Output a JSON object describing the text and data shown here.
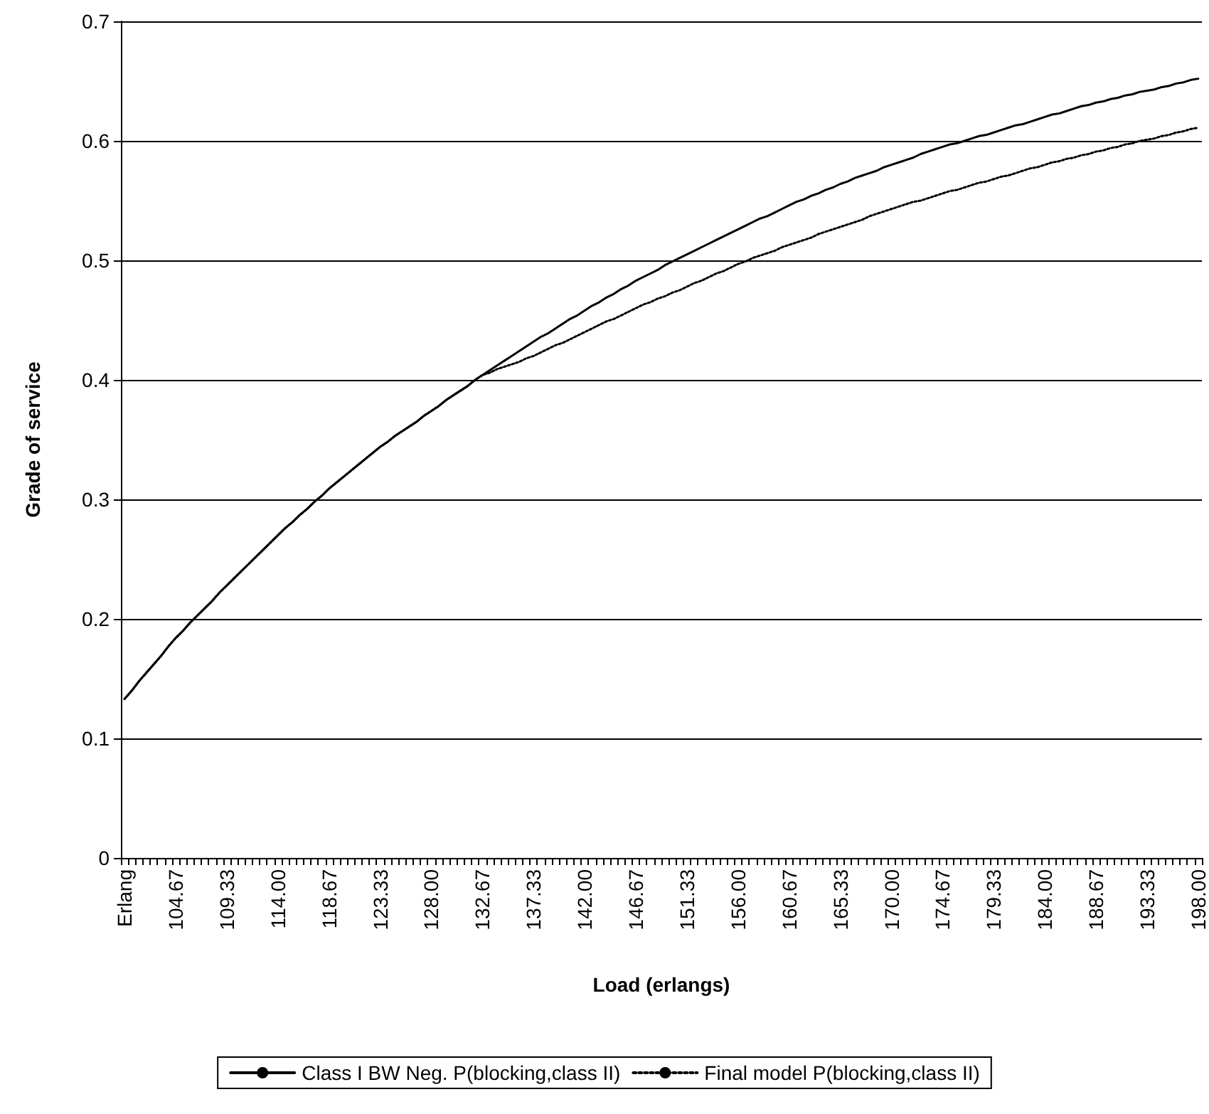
{
  "chart_data": {
    "type": "line",
    "xlabel": "Load (erlangs)",
    "ylabel": "Grade of service",
    "categories": [
      "Erlang",
      null,
      null,
      null,
      null,
      null,
      null,
      "104.67",
      null,
      null,
      null,
      null,
      null,
      null,
      "109.33",
      null,
      null,
      null,
      null,
      null,
      null,
      "114.00",
      null,
      null,
      null,
      null,
      null,
      null,
      "118.67",
      null,
      null,
      null,
      null,
      null,
      null,
      "123.33",
      null,
      null,
      null,
      null,
      null,
      null,
      "128.00",
      null,
      null,
      null,
      null,
      null,
      null,
      "132.67",
      null,
      null,
      null,
      null,
      null,
      null,
      "137.33",
      null,
      null,
      null,
      null,
      null,
      null,
      "142.00",
      null,
      null,
      null,
      null,
      null,
      null,
      "146.67",
      null,
      null,
      null,
      null,
      null,
      null,
      "151.33",
      null,
      null,
      null,
      null,
      null,
      null,
      "156.00",
      null,
      null,
      null,
      null,
      null,
      null,
      "160.67",
      null,
      null,
      null,
      null,
      null,
      null,
      "165.33",
      null,
      null,
      null,
      null,
      null,
      null,
      "170.00",
      null,
      null,
      null,
      null,
      null,
      null,
      "174.67",
      null,
      null,
      null,
      null,
      null,
      null,
      "179.33",
      null,
      null,
      null,
      null,
      null,
      null,
      "184.00",
      null,
      null,
      null,
      null,
      null,
      null,
      "188.67",
      null,
      null,
      null,
      null,
      null,
      null,
      "193.33",
      null,
      null,
      null,
      null,
      null,
      null,
      "198.00"
    ],
    "series": [
      {
        "name": "Class I BW Neg. P(blocking,class II)",
        "color": "#000000",
        "line_style": "solid",
        "values": [
          0.133,
          0.14,
          0.148,
          0.155,
          0.162,
          0.169,
          0.177,
          0.184,
          0.19,
          0.197,
          0.203,
          0.209,
          0.215,
          0.222,
          0.228,
          0.234,
          0.24,
          0.246,
          0.252,
          0.258,
          0.264,
          0.27,
          0.276,
          0.281,
          0.287,
          0.292,
          0.298,
          0.303,
          0.309,
          0.314,
          0.319,
          0.324,
          0.329,
          0.334,
          0.339,
          0.344,
          0.348,
          0.353,
          0.357,
          0.361,
          0.365,
          0.37,
          0.374,
          0.378,
          0.383,
          0.387,
          0.391,
          0.395,
          0.4,
          0.404,
          0.408,
          0.412,
          0.416,
          0.42,
          0.424,
          0.428,
          0.432,
          0.436,
          0.439,
          0.443,
          0.447,
          0.451,
          0.454,
          0.458,
          0.462,
          0.465,
          0.469,
          0.472,
          0.476,
          0.479,
          0.483,
          0.486,
          0.489,
          0.492,
          0.496,
          0.499,
          0.502,
          0.505,
          0.508,
          0.511,
          0.514,
          0.517,
          0.52,
          0.523,
          0.526,
          0.529,
          0.532,
          0.535,
          0.537,
          0.54,
          0.543,
          0.546,
          0.549,
          0.551,
          0.554,
          0.556,
          0.559,
          0.561,
          0.564,
          0.566,
          0.569,
          0.571,
          0.573,
          0.575,
          0.578,
          0.58,
          0.582,
          0.584,
          0.586,
          0.589,
          0.591,
          0.593,
          0.595,
          0.597,
          0.598,
          0.6,
          0.602,
          0.604,
          0.605,
          0.607,
          0.609,
          0.611,
          0.613,
          0.614,
          0.616,
          0.618,
          0.62,
          0.622,
          0.623,
          0.625,
          0.627,
          0.629,
          0.63,
          0.632,
          0.633,
          0.635,
          0.636,
          0.638,
          0.639,
          0.641,
          0.642,
          0.643,
          0.645,
          0.646,
          0.648,
          0.649,
          0.651,
          0.652
        ]
      },
      {
        "name": "Final model P(blocking,class II)",
        "color": "#000000",
        "line_style": "dotted",
        "values": [
          0.133,
          0.14,
          0.148,
          0.155,
          0.162,
          0.169,
          0.177,
          0.184,
          0.19,
          0.197,
          0.203,
          0.209,
          0.215,
          0.222,
          0.228,
          0.234,
          0.24,
          0.246,
          0.252,
          0.258,
          0.264,
          0.27,
          0.276,
          0.281,
          0.287,
          0.292,
          0.298,
          0.303,
          0.309,
          0.314,
          0.319,
          0.324,
          0.329,
          0.334,
          0.339,
          0.344,
          0.348,
          0.353,
          0.357,
          0.361,
          0.365,
          0.37,
          0.374,
          0.378,
          0.383,
          0.387,
          0.391,
          0.395,
          0.4,
          0.404,
          0.406,
          0.409,
          0.411,
          0.413,
          0.415,
          0.418,
          0.42,
          0.423,
          0.426,
          0.429,
          0.431,
          0.434,
          0.437,
          0.44,
          0.443,
          0.446,
          0.449,
          0.451,
          0.454,
          0.457,
          0.46,
          0.463,
          0.465,
          0.468,
          0.47,
          0.473,
          0.475,
          0.478,
          0.481,
          0.483,
          0.486,
          0.489,
          0.491,
          0.494,
          0.497,
          0.499,
          0.502,
          0.504,
          0.506,
          0.508,
          0.511,
          0.513,
          0.515,
          0.517,
          0.519,
          0.522,
          0.524,
          0.526,
          0.528,
          0.53,
          0.532,
          0.534,
          0.537,
          0.539,
          0.541,
          0.543,
          0.545,
          0.547,
          0.549,
          0.55,
          0.552,
          0.554,
          0.556,
          0.558,
          0.559,
          0.561,
          0.563,
          0.565,
          0.566,
          0.568,
          0.57,
          0.571,
          0.573,
          0.575,
          0.577,
          0.578,
          0.58,
          0.582,
          0.583,
          0.585,
          0.586,
          0.588,
          0.589,
          0.591,
          0.592,
          0.594,
          0.595,
          0.597,
          0.598,
          0.6,
          0.601,
          0.602,
          0.604,
          0.605,
          0.607,
          0.608,
          0.61,
          0.611
        ]
      }
    ],
    "ylim": [
      0,
      0.7
    ],
    "yticks": [
      0,
      0.1,
      0.2,
      0.3,
      0.4,
      0.5,
      0.6,
      0.7
    ],
    "grid": "y",
    "legend": "bottom",
    "marker": "none"
  }
}
